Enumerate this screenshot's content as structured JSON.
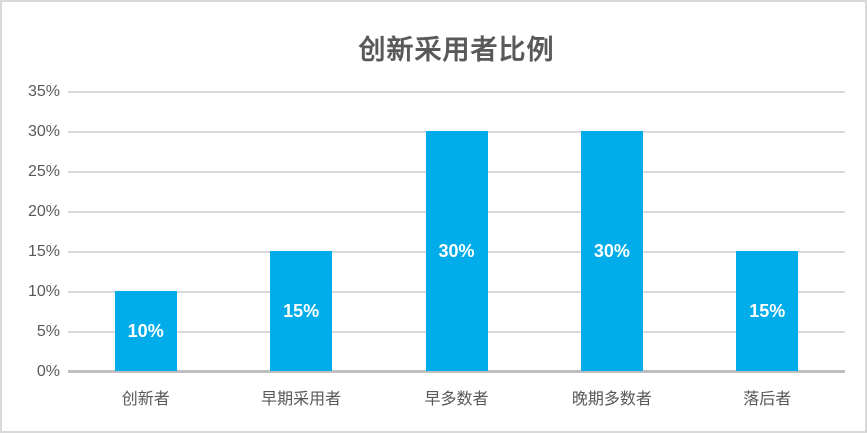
{
  "chart_data": {
    "type": "bar",
    "title": "创新采用者比例",
    "categories": [
      "创新者",
      "早期采用者",
      "早多数者",
      "晚期多数者",
      "落后者"
    ],
    "values": [
      10,
      15,
      30,
      30,
      15
    ],
    "data_labels": [
      "10%",
      "15%",
      "30%",
      "30%",
      "15%"
    ],
    "y_tick_values": [
      0,
      5,
      10,
      15,
      20,
      25,
      30,
      35
    ],
    "y_tick_labels": [
      "0%",
      "5%",
      "10%",
      "15%",
      "20%",
      "25%",
      "30%",
      "35%"
    ],
    "ylim": [
      0,
      35
    ],
    "xlabel": "",
    "ylabel": "",
    "grid": true,
    "legend": "none",
    "colors": {
      "bar": "#00ACE9",
      "bar_value_label": "#FFFFFF",
      "axis_text": "#595959",
      "title_text": "#595959",
      "gridline": "#D9D9D9",
      "axis_line": "#BFBFBF",
      "frame_border": "#D9D9D9",
      "background": "#FFFFFF"
    }
  }
}
